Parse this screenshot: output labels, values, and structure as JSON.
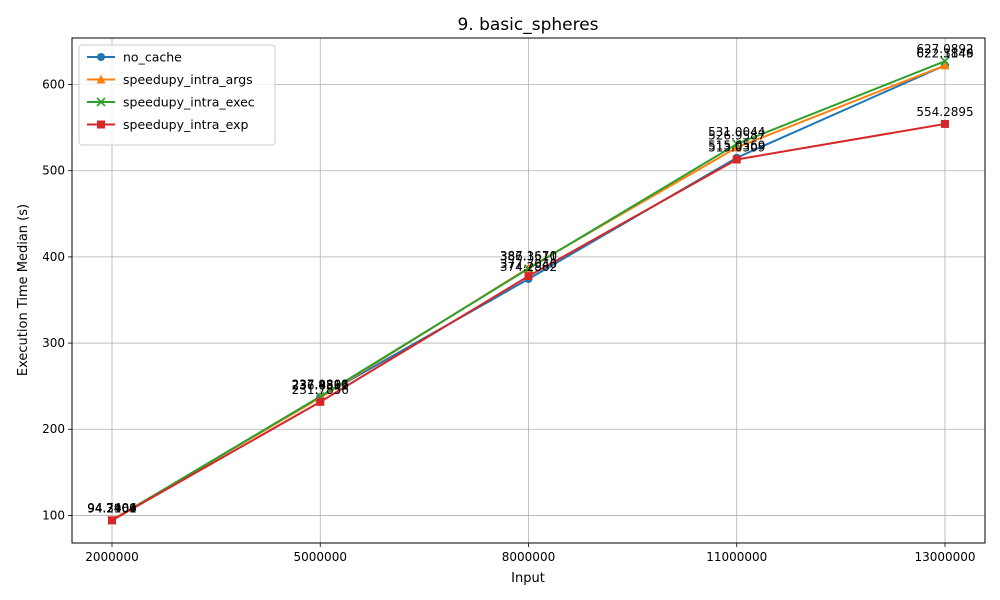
{
  "chart_data": {
    "type": "line",
    "title": "9. basic_spheres",
    "xlabel": "Input",
    "ylabel": "Execution Time Median (s)",
    "categories": [
      "2000000",
      "5000000",
      "8000000",
      "11000000",
      "13000000"
    ],
    "ylim": [
      68,
      654
    ],
    "yticks": [
      100,
      200,
      300,
      400,
      500,
      600
    ],
    "ytick_labels": [
      "100",
      "200",
      "300",
      "400",
      "500",
      "600"
    ],
    "grid": true,
    "legend_position": "top-left",
    "series": [
      {
        "name": "no_cache",
        "color": "#1f77b4",
        "marker": "circle",
        "values": [
          94.2401,
          237.4566,
          374.2862,
          515.0569,
          622.3149
        ],
        "labels": [
          "94.2401",
          "237.4566",
          "374.2862",
          "515.0569",
          "622.3149"
        ]
      },
      {
        "name": "speedupy_intra_args",
        "color": "#ff7f0e",
        "marker": "triangle",
        "values": [
          94.7406,
          236.6312,
          387.167,
          526.9587,
          622.1846
        ],
        "labels": [
          "94.7406",
          "236.6312",
          "387.1670",
          "526.9587",
          "622.1846"
        ]
      },
      {
        "name": "speedupy_intra_exec",
        "color": "#2ca02c",
        "marker": "x",
        "values": [
          94.3109,
          237.9891,
          386.3511,
          531.0044,
          627.0892
        ],
        "labels": [
          "94.3109",
          "237.9891",
          "386.3511",
          "531.0044",
          "627.0892"
        ]
      },
      {
        "name": "speedupy_intra_exp",
        "color": "#d62728",
        "marker": "square",
        "values": [
          94.2964,
          231.7856,
          377.704,
          513.0309,
          554.2895
        ],
        "labels": [
          "94.2964",
          "231.7856",
          "377.7040",
          "513.0309",
          "554.2895"
        ]
      }
    ]
  }
}
